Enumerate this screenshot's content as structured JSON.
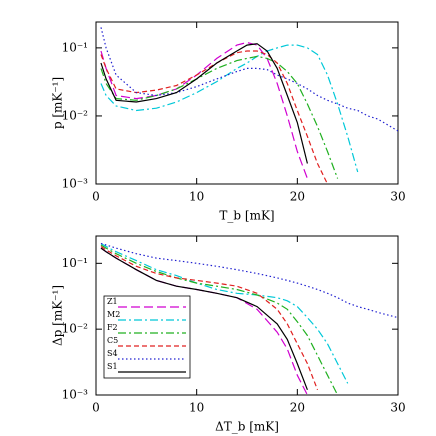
{
  "chart_data": [
    {
      "type": "line",
      "log_y": true,
      "xlabel": "T_b [mK]",
      "ylabel": "p [mK⁻¹]",
      "xlim": [
        0,
        30
      ],
      "ylim": [
        0.001,
        0.24
      ],
      "xticks": [
        0,
        10,
        20,
        30
      ],
      "yticks": [
        {
          "value": 0.1,
          "label": "10⁻¹"
        },
        {
          "value": 0.01,
          "label": "10⁻²"
        },
        {
          "value": 0.001,
          "label": "10⁻³"
        }
      ],
      "x": [
        0.5,
        1,
        2,
        4,
        6,
        8,
        10,
        12,
        14,
        15,
        16,
        17,
        18,
        19,
        20,
        21,
        22,
        23,
        24,
        25,
        26,
        27,
        28,
        30
      ],
      "series": [
        {
          "color": "#d000d0",
          "dash": "long",
          "values": [
            0.09,
            0.05,
            0.02,
            0.018,
            0.02,
            0.025,
            0.04,
            0.07,
            0.11,
            0.12,
            0.11,
            0.07,
            0.03,
            0.01,
            0.003,
            0.0012,
            null,
            null,
            null,
            null,
            null,
            null,
            null,
            null
          ]
        },
        {
          "color": "#00c8d8",
          "dash": "dashdot",
          "values": [
            0.03,
            0.02,
            0.014,
            0.012,
            0.013,
            0.016,
            0.022,
            0.032,
            0.05,
            0.06,
            0.075,
            0.09,
            0.1,
            0.11,
            0.11,
            0.1,
            0.08,
            0.04,
            0.015,
            0.005,
            0.0015,
            null,
            null,
            null
          ]
        },
        {
          "color": "#20b020",
          "dash": "dashdot",
          "values": [
            0.05,
            0.03,
            0.018,
            0.017,
            0.02,
            0.025,
            0.035,
            0.05,
            0.065,
            0.07,
            0.075,
            0.07,
            0.06,
            0.045,
            0.03,
            0.015,
            0.007,
            0.003,
            0.0012,
            null,
            null,
            null,
            null,
            null
          ]
        },
        {
          "color": "#e02020",
          "dash": "dashed",
          "values": [
            0.08,
            0.05,
            0.025,
            0.022,
            0.024,
            0.028,
            0.04,
            0.06,
            0.085,
            0.09,
            0.09,
            0.08,
            0.06,
            0.03,
            0.012,
            0.005,
            0.002,
            0.001,
            null,
            null,
            null,
            null,
            null,
            null
          ]
        },
        {
          "color": "#2020d0",
          "dash": "dotted",
          "values": [
            0.2,
            0.1,
            0.04,
            0.022,
            0.02,
            0.022,
            0.027,
            0.035,
            0.045,
            0.05,
            0.05,
            0.048,
            0.04,
            0.035,
            0.03,
            0.025,
            0.02,
            0.017,
            0.015,
            0.013,
            0.012,
            0.01,
            0.009,
            0.006
          ]
        },
        {
          "color": "#000000",
          "dash": "solid",
          "values": [
            0.06,
            0.035,
            0.017,
            0.016,
            0.018,
            0.022,
            0.035,
            0.06,
            0.09,
            0.11,
            0.115,
            0.09,
            0.05,
            0.02,
            0.008,
            0.002,
            null,
            null,
            null,
            null,
            null,
            null,
            null,
            null
          ]
        }
      ]
    },
    {
      "type": "line",
      "log_y": true,
      "xlabel": "ΔT_b [mK]",
      "ylabel": "Δp [mK⁻¹]",
      "xlim": [
        0,
        30
      ],
      "ylim": [
        0.001,
        0.26
      ],
      "xticks": [
        0,
        10,
        20,
        30
      ],
      "yticks": [
        {
          "value": 0.1,
          "label": "10⁻¹"
        },
        {
          "value": 0.01,
          "label": "10⁻²"
        },
        {
          "value": 0.001,
          "label": "10⁻³"
        }
      ],
      "legend": "left",
      "x": [
        0.5,
        1,
        2,
        4,
        6,
        8,
        10,
        12,
        14,
        16,
        18,
        19,
        20,
        21,
        22,
        23,
        24,
        25,
        26,
        27,
        28,
        30
      ],
      "series": [
        {
          "name": "Z1",
          "color": "#d000d0",
          "dash": "long",
          "values": [
            0.17,
            0.15,
            0.12,
            0.08,
            0.055,
            0.045,
            0.04,
            0.035,
            0.03,
            0.02,
            0.009,
            0.005,
            0.002,
            0.001,
            null,
            null,
            null,
            null,
            null,
            null,
            null,
            null
          ]
        },
        {
          "name": "M2",
          "color": "#00c8d8",
          "dash": "dashdot",
          "values": [
            0.2,
            0.18,
            0.15,
            0.11,
            0.08,
            0.065,
            0.05,
            0.04,
            0.035,
            0.033,
            0.03,
            0.027,
            0.022,
            0.015,
            0.01,
            0.006,
            0.003,
            0.0015,
            null,
            null,
            null,
            null
          ]
        },
        {
          "name": "F2",
          "color": "#20b020",
          "dash": "dashdot",
          "values": [
            0.19,
            0.17,
            0.14,
            0.1,
            0.075,
            0.06,
            0.05,
            0.045,
            0.04,
            0.033,
            0.025,
            0.02,
            0.013,
            0.008,
            0.004,
            0.002,
            0.001,
            null,
            null,
            null,
            null,
            null
          ]
        },
        {
          "name": "C5",
          "color": "#e02020",
          "dash": "dashed",
          "values": [
            0.18,
            0.16,
            0.13,
            0.09,
            0.07,
            0.06,
            0.055,
            0.05,
            0.045,
            0.035,
            0.02,
            0.012,
            0.006,
            0.003,
            0.0012,
            null,
            null,
            null,
            null,
            null,
            null,
            null
          ]
        },
        {
          "name": "S4",
          "color": "#2020d0",
          "dash": "dotted",
          "values": [
            0.2,
            0.19,
            0.17,
            0.14,
            0.12,
            0.11,
            0.1,
            0.09,
            0.08,
            0.07,
            0.06,
            0.055,
            0.05,
            0.045,
            0.04,
            0.035,
            0.03,
            0.025,
            0.022,
            0.02,
            0.018,
            0.015
          ]
        },
        {
          "name": "S1",
          "color": "#000000",
          "dash": "solid",
          "values": [
            0.17,
            0.15,
            0.12,
            0.08,
            0.055,
            0.045,
            0.04,
            0.035,
            0.03,
            0.022,
            0.012,
            0.007,
            0.003,
            0.0012,
            null,
            null,
            null,
            null,
            null,
            null,
            null,
            null
          ]
        }
      ]
    }
  ]
}
